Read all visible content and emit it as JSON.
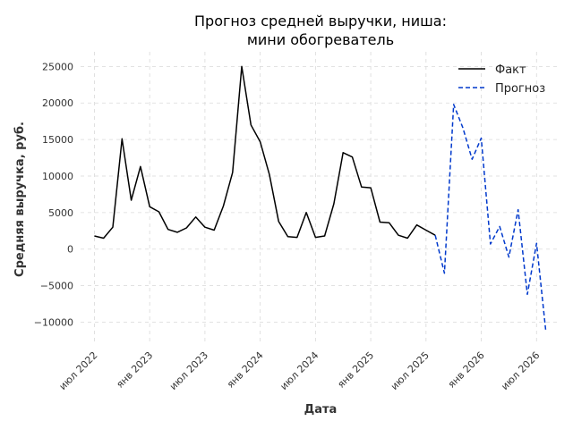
{
  "chart_data": {
    "type": "line",
    "title_lines": [
      "Прогноз средней выручки, ниша:",
      "мини обогреватель"
    ],
    "xlabel": "Дата",
    "ylabel": "Средняя выручка, руб.",
    "ylim": [
      -13000,
      27000
    ],
    "xlim": [
      "2022-06",
      "2026-09"
    ],
    "y_ticks": [
      -10000,
      -5000,
      0,
      5000,
      10000,
      15000,
      20000,
      25000
    ],
    "y_tick_labels": [
      "−10000",
      "−5000",
      "0",
      "5000",
      "10000",
      "15000",
      "20000",
      "25000"
    ],
    "x_ticks": [
      {
        "date": "2022-07",
        "label": "июл 2022"
      },
      {
        "date": "2023-01",
        "label": "янв 2023"
      },
      {
        "date": "2023-07",
        "label": "июл 2023"
      },
      {
        "date": "2024-01",
        "label": "янв 2024"
      },
      {
        "date": "2024-07",
        "label": "июл 2024"
      },
      {
        "date": "2025-01",
        "label": "янв 2025"
      },
      {
        "date": "2025-07",
        "label": "июл 2025"
      },
      {
        "date": "2026-01",
        "label": "янв 2026"
      },
      {
        "date": "2026-07",
        "label": "июл 2026"
      }
    ],
    "grid": true,
    "legend_position": "top-right",
    "series": [
      {
        "name": "Факт",
        "color": "#000000",
        "dash": "solid",
        "x": [
          "2022-07",
          "2022-08",
          "2022-09",
          "2022-10",
          "2022-11",
          "2022-12",
          "2023-01",
          "2023-02",
          "2023-03",
          "2023-04",
          "2023-05",
          "2023-06",
          "2023-07",
          "2023-08",
          "2023-09",
          "2023-10",
          "2023-11",
          "2023-12",
          "2024-01",
          "2024-02",
          "2024-03",
          "2024-04",
          "2024-05",
          "2024-06",
          "2024-07",
          "2024-08",
          "2024-09",
          "2024-10",
          "2024-11",
          "2024-12",
          "2025-01",
          "2025-02",
          "2025-03",
          "2025-04",
          "2025-05",
          "2025-06",
          "2025-07",
          "2025-08"
        ],
        "y": [
          1800,
          1500,
          3000,
          15100,
          6700,
          11300,
          5800,
          5100,
          2700,
          2300,
          2900,
          4400,
          3000,
          2600,
          5900,
          10500,
          25000,
          17000,
          14700,
          10200,
          3800,
          1700,
          1600,
          5000,
          1600,
          1800,
          6200,
          13200,
          12600,
          8500,
          8400,
          3700,
          3600,
          1900,
          1500,
          3300,
          2600,
          1900
        ]
      },
      {
        "name": "Прогноз",
        "color": "#0039cc",
        "dash": "dashed",
        "x": [
          "2025-08",
          "2025-09",
          "2025-10",
          "2025-11",
          "2025-12",
          "2026-01",
          "2026-02",
          "2026-03",
          "2026-04",
          "2026-05",
          "2026-06",
          "2026-07",
          "2026-08"
        ],
        "y": [
          1900,
          -3300,
          19800,
          16600,
          12300,
          15200,
          700,
          3100,
          -1100,
          5400,
          -6200,
          800,
          -11200
        ]
      }
    ]
  }
}
